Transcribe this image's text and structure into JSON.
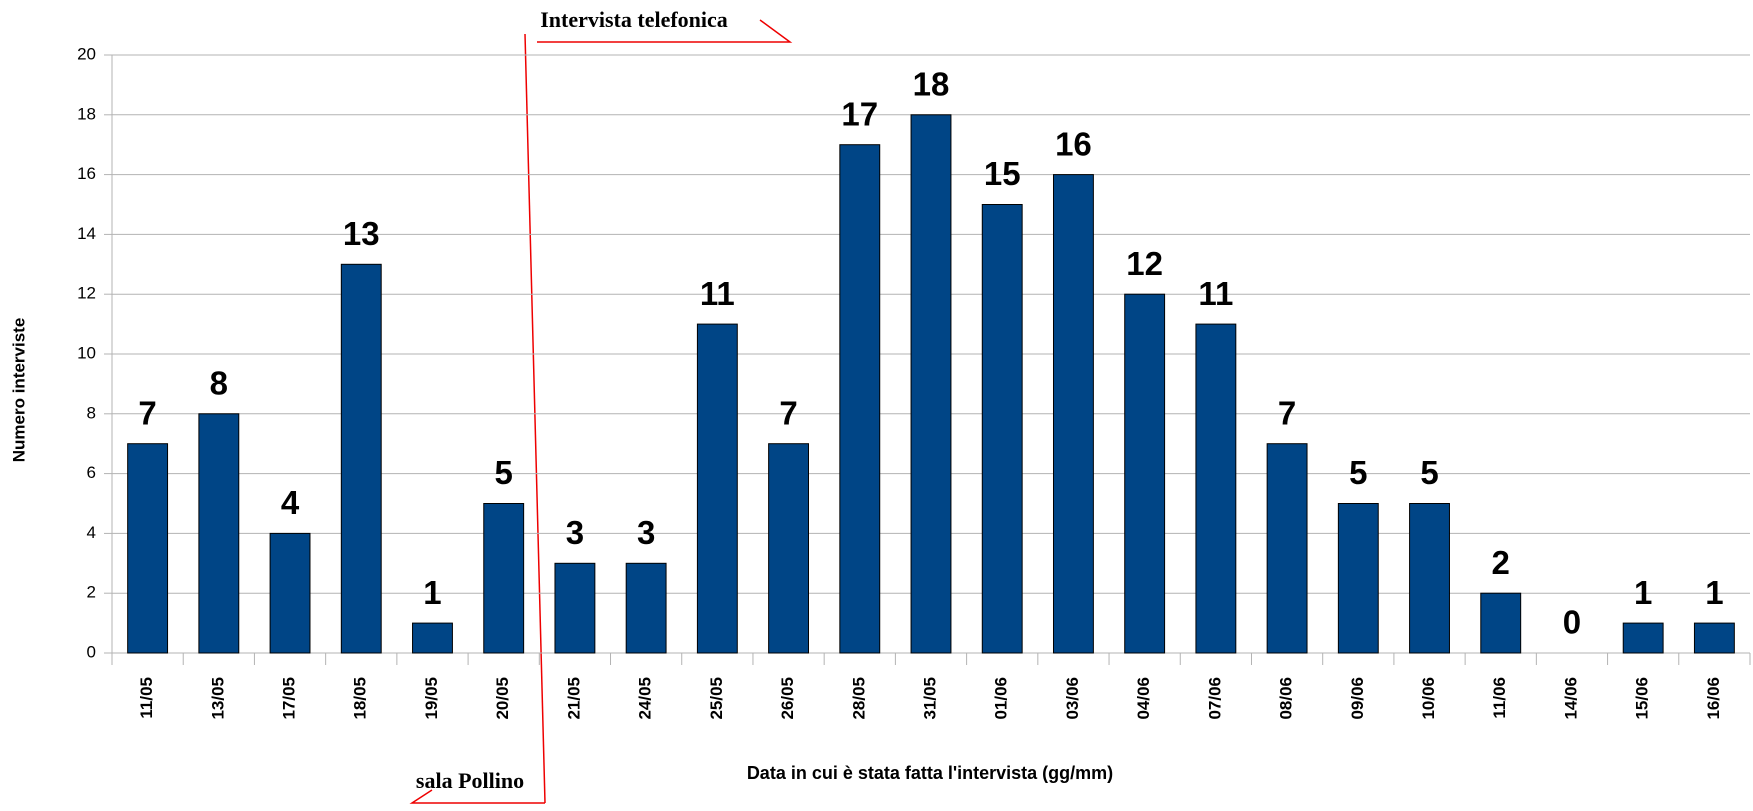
{
  "chart_data": {
    "type": "bar",
    "categories": [
      "11/05",
      "13/05",
      "17/05",
      "18/05",
      "19/05",
      "20/05",
      "21/05",
      "24/05",
      "25/05",
      "26/05",
      "28/05",
      "31/05",
      "01/06",
      "03/06",
      "04/06",
      "07/06",
      "08/06",
      "09/06",
      "10/06",
      "11/06",
      "14/06",
      "15/06",
      "16/06"
    ],
    "values": [
      7,
      8,
      4,
      13,
      1,
      5,
      3,
      3,
      11,
      7,
      17,
      18,
      15,
      16,
      12,
      11,
      7,
      5,
      5,
      2,
      0,
      1,
      1
    ],
    "color": "#004586",
    "ylim": [
      0,
      20
    ],
    "yticks": [
      0,
      2,
      4,
      6,
      8,
      10,
      12,
      14,
      16,
      18,
      20
    ],
    "grid": true,
    "y_label": "Numero interviste",
    "x_label": "Data in cui è stata fatta l'intervista  (gg/mm)",
    "annotations": [
      "Intervista telefonica",
      "sala Pollino"
    ]
  }
}
